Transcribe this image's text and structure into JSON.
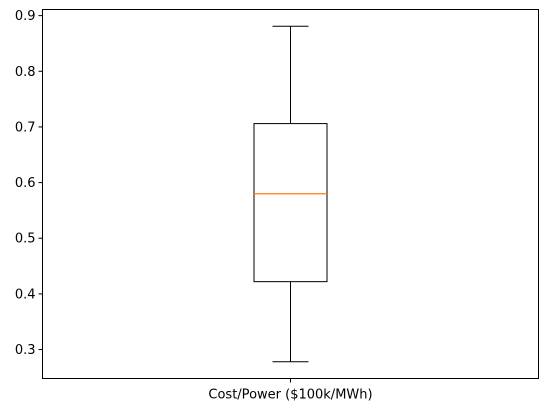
{
  "chart_data": {
    "type": "box",
    "categories": [
      "Cost/Power ($100k/MWh)"
    ],
    "boxes": [
      {
        "category": "Cost/Power ($100k/MWh)",
        "whisker_low": 0.278,
        "q1": 0.422,
        "median": 0.58,
        "q3": 0.706,
        "whisker_high": 0.881
      }
    ],
    "yticks": [
      "0.3",
      "0.4",
      "0.5",
      "0.6",
      "0.7",
      "0.8",
      "0.9"
    ],
    "ylim": [
      0.248,
      0.911
    ],
    "title": "",
    "xlabel": "",
    "ylabel": "",
    "grid": false,
    "colors": {
      "box": "#000000",
      "median": "#ff7f0e"
    }
  }
}
